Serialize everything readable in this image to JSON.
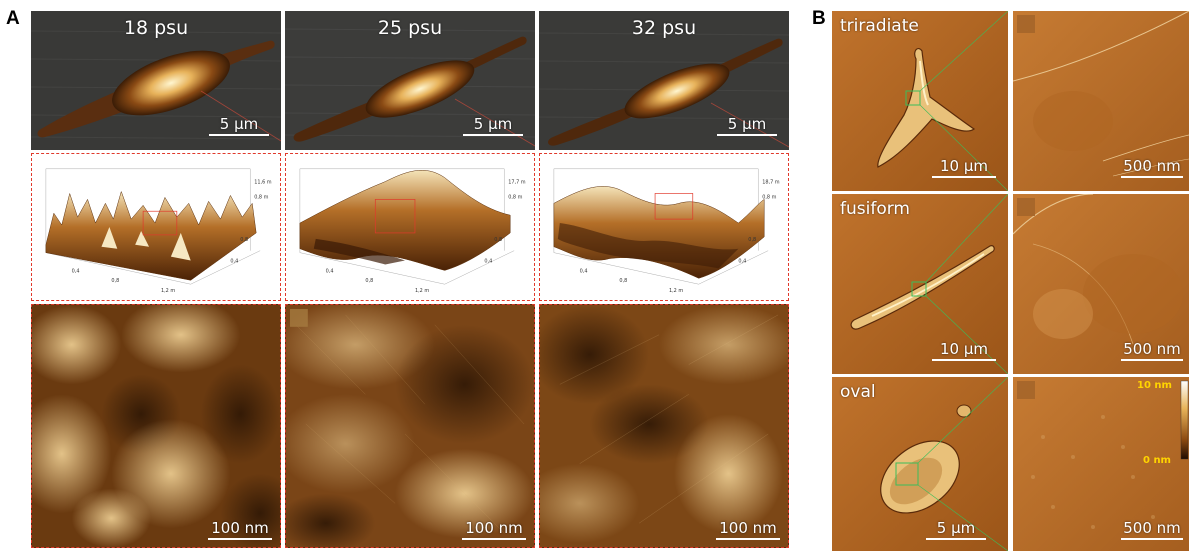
{
  "panel_a": {
    "letter": "A",
    "columns": [
      {
        "salinity": "18 psu",
        "scale_top": "5 µm",
        "scale_bottom": "100 nm",
        "mesh_max": "11,6 m",
        "mesh_val2": "0,8 m"
      },
      {
        "salinity": "25 psu",
        "scale_top": "5 µm",
        "scale_bottom": "100 nm",
        "mesh_max": "17,7 m",
        "mesh_val2": "0,8 m"
      },
      {
        "salinity": "32 psu",
        "scale_top": "5 µm",
        "scale_bottom": "100 nm",
        "mesh_max": "18,7 m",
        "mesh_val2": "0,8 m"
      }
    ],
    "mesh_ticks_x": [
      "0,4",
      "0,8",
      "1,2 m"
    ],
    "mesh_ticks_y": [
      "0,4",
      "0,8",
      "1,2 m"
    ]
  },
  "panel_b": {
    "letter": "B",
    "rows": [
      {
        "shape": "triradiate",
        "scale_left": "10 µm",
        "scale_right": "500 nm"
      },
      {
        "shape": "fusiform",
        "scale_left": "10 µm",
        "scale_right": "500 nm"
      },
      {
        "shape": "oval",
        "scale_left": "5 µm",
        "scale_right": "500 nm"
      }
    ],
    "colorbar": {
      "max": "10 nm",
      "min": "0 nm"
    }
  },
  "colors": {
    "amber_dark": "#6b3608",
    "amber_mid": "#b5681e",
    "amber_light": "#f1d49a",
    "dashed_red": "#e0392b",
    "colorbar_label": "#ffd400"
  }
}
